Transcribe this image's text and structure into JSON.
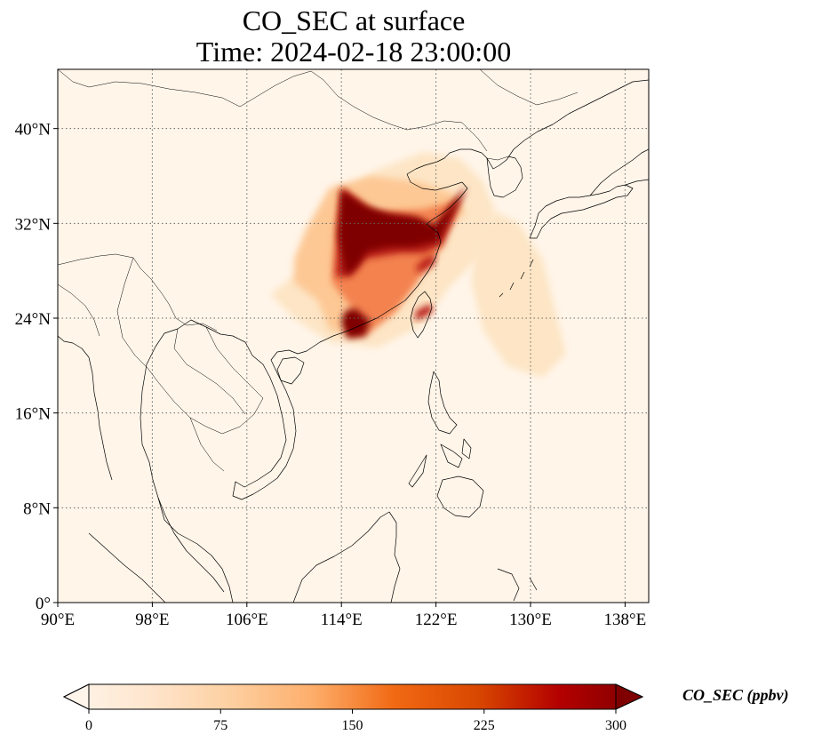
{
  "title": {
    "line1": "CO_SEC at surface",
    "line2": "Time: 2024-02-18 23:00:00"
  },
  "map": {
    "extent": {
      "lon": [
        90,
        140
      ],
      "lat": [
        0,
        45
      ]
    },
    "grid": true,
    "background_color": "#fff5e9",
    "coastline_color": "#000000",
    "lon_ticks": [
      {
        "value": 90,
        "label": "90°E"
      },
      {
        "value": 98,
        "label": "98°E"
      },
      {
        "value": 106,
        "label": "106°E"
      },
      {
        "value": 114,
        "label": "114°E"
      },
      {
        "value": 122,
        "label": "122°E"
      },
      {
        "value": 130,
        "label": "130°E"
      },
      {
        "value": 138,
        "label": "138°E"
      }
    ],
    "lat_ticks": [
      {
        "value": 0,
        "label": "0°"
      },
      {
        "value": 8,
        "label": "8°N"
      },
      {
        "value": 16,
        "label": "16°N"
      },
      {
        "value": 24,
        "label": "24°N"
      },
      {
        "value": 32,
        "label": "32°N"
      },
      {
        "value": 40,
        "label": "40°N"
      }
    ]
  },
  "plume": {
    "colors": {
      "faint": "#fde5c5",
      "light": "#fdc894",
      "mid": "#f3824f",
      "high": "#b81e12",
      "max": "#7f0000"
    },
    "regions": [
      {
        "level": "faint",
        "points": [
          [
            110.5,
            28
          ],
          [
            113,
            34
          ],
          [
            117,
            36.5
          ],
          [
            121,
            38
          ],
          [
            124,
            37.5
          ],
          [
            126,
            35.5
          ],
          [
            127,
            33
          ],
          [
            125.5,
            29
          ],
          [
            123,
            26.5
          ],
          [
            121,
            23.5
          ],
          [
            117,
            21.5
          ],
          [
            113,
            22
          ],
          [
            110,
            24
          ],
          [
            108,
            26
          ]
        ]
      },
      {
        "level": "faint",
        "points": [
          [
            127,
            33
          ],
          [
            129,
            32
          ],
          [
            131,
            29
          ],
          [
            132,
            25
          ],
          [
            133,
            21
          ],
          [
            131,
            19
          ],
          [
            128,
            20
          ],
          [
            126,
            23
          ],
          [
            125,
            27
          ],
          [
            125.5,
            31
          ]
        ]
      },
      {
        "level": "light",
        "points": [
          [
            110,
            29
          ],
          [
            111,
            31.5
          ],
          [
            113,
            35
          ],
          [
            116.5,
            36
          ],
          [
            120.5,
            35.5
          ],
          [
            123.5,
            34.5
          ],
          [
            124.5,
            33
          ],
          [
            121.5,
            30
          ],
          [
            120,
            27
          ],
          [
            118.5,
            24.5
          ],
          [
            115,
            22.5
          ],
          [
            113,
            23
          ],
          [
            112,
            25.5
          ],
          [
            110,
            27
          ]
        ]
      },
      {
        "level": "mid",
        "points": [
          [
            113.2,
            27
          ],
          [
            113.5,
            32
          ],
          [
            114,
            35
          ],
          [
            117,
            33
          ],
          [
            121,
            33.2
          ],
          [
            124,
            34
          ],
          [
            122.5,
            30
          ],
          [
            120,
            26.5
          ],
          [
            118.5,
            24.5
          ],
          [
            116,
            22.5
          ],
          [
            114.5,
            22.5
          ],
          [
            114.8,
            25
          ]
        ]
      },
      {
        "level": "high",
        "points": [
          [
            113.5,
            27.5
          ],
          [
            113.8,
            31.5
          ],
          [
            114,
            35
          ],
          [
            116.5,
            33
          ],
          [
            120,
            32.5
          ],
          [
            122,
            31.5
          ],
          [
            124.5,
            35
          ],
          [
            122.5,
            30.2
          ],
          [
            121,
            29.5
          ],
          [
            119,
            29.5
          ],
          [
            116,
            29
          ],
          [
            114.8,
            27.5
          ]
        ]
      },
      {
        "level": "max",
        "points": [
          [
            113.7,
            31
          ],
          [
            114,
            34.8
          ],
          [
            116,
            33.5
          ],
          [
            118,
            32.8
          ],
          [
            120.5,
            32.5
          ],
          [
            121.8,
            31.8
          ],
          [
            124.6,
            35.1
          ],
          [
            122.2,
            30.5
          ],
          [
            120,
            30
          ],
          [
            118,
            30
          ],
          [
            116.2,
            29.6
          ],
          [
            115.3,
            28.3
          ],
          [
            114.4,
            27.6
          ]
        ]
      },
      {
        "level": "max",
        "points": [
          [
            114,
            23.7
          ],
          [
            114.5,
            22.3
          ],
          [
            116,
            22.5
          ],
          [
            116.4,
            23.8
          ],
          [
            115.2,
            24.8
          ],
          [
            114.3,
            24.6
          ]
        ]
      },
      {
        "level": "high",
        "points": [
          [
            120.5,
            27.8
          ],
          [
            121.8,
            28.5
          ],
          [
            122,
            29.4
          ],
          [
            121,
            29
          ],
          [
            120.3,
            28.3
          ]
        ]
      },
      {
        "level": "high",
        "points": [
          [
            120.3,
            24.6
          ],
          [
            121.5,
            25.2
          ],
          [
            121.8,
            24.6
          ],
          [
            120.8,
            24
          ],
          [
            120.2,
            23.8
          ]
        ]
      }
    ]
  },
  "colorbar": {
    "min": 0,
    "max": 300,
    "ticks": [
      {
        "value": 0,
        "label": "0"
      },
      {
        "value": 75,
        "label": "75"
      },
      {
        "value": 150,
        "label": "150"
      },
      {
        "value": 225,
        "label": "225"
      },
      {
        "value": 300,
        "label": "300"
      }
    ],
    "colors": [
      "#fff5eb",
      "#fee6ce",
      "#fdd0a2",
      "#fdae6b",
      "#f16913",
      "#d94801",
      "#b30000",
      "#7f0000"
    ],
    "label": "CO_SEC (ppbv)"
  }
}
